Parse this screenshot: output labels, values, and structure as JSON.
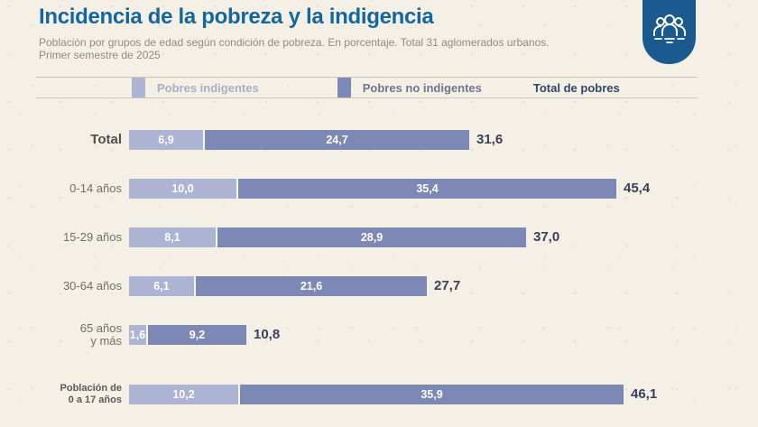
{
  "header": {
    "title": "Incidencia de la pobreza y la indigencia",
    "subtitle_line1": "Población por grupos de edad según condición de pobreza. En porcentaje. Total 31 aglomerados urbanos.",
    "subtitle_line2": "Primer semestre de 2025"
  },
  "legend": {
    "items": [
      {
        "label": "Pobres indigentes",
        "swatch": "#acb3d3"
      },
      {
        "label": "Pobres no indigentes",
        "swatch": "#7e88b5"
      },
      {
        "label": "Total de pobres",
        "swatch": null
      }
    ]
  },
  "chart_data": {
    "type": "bar",
    "orientation": "horizontal",
    "stacked": true,
    "unit": "%",
    "decimal_separator": ",",
    "series": [
      {
        "name": "Pobres indigentes",
        "color": "#acb3d3",
        "values": [
          6.9,
          10.0,
          8.1,
          6.1,
          1.6,
          10.2
        ]
      },
      {
        "name": "Pobres no indigentes",
        "color": "#7e88b5",
        "values": [
          24.7,
          35.4,
          28.9,
          21.6,
          9.2,
          35.9
        ]
      }
    ],
    "totals": [
      31.6,
      45.4,
      37.0,
      27.7,
      10.8,
      46.1
    ],
    "categories": [
      {
        "label_lines": [
          "Total"
        ],
        "emphasis": true
      },
      {
        "label_lines": [
          "0-14 años"
        ]
      },
      {
        "label_lines": [
          "15-29 años"
        ]
      },
      {
        "label_lines": [
          "30-64 años"
        ]
      },
      {
        "label_lines": [
          "65 años",
          "y más"
        ]
      },
      {
        "label_lines": [
          "Población de",
          "0 a 17 años"
        ],
        "small_bold": true,
        "separated": true
      }
    ],
    "value_axis_range": [
      0,
      50
    ],
    "grid": false,
    "legend_position": "top"
  }
}
